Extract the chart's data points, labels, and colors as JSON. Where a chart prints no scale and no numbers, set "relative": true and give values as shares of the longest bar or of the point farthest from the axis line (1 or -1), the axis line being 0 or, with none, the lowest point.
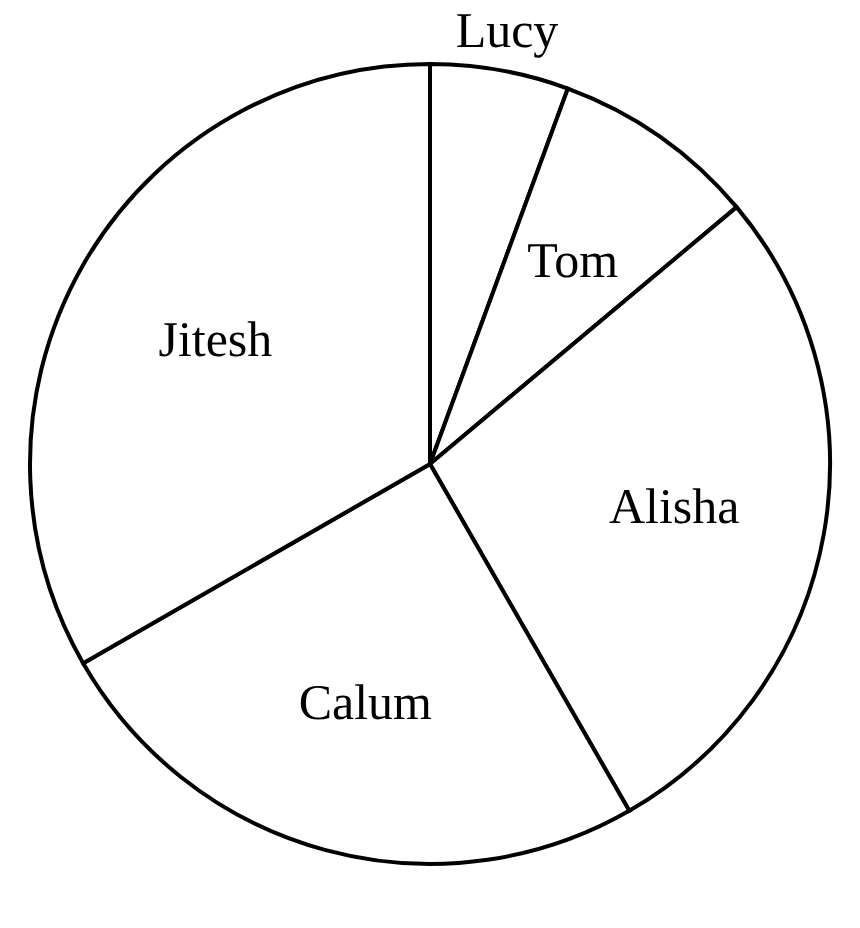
{
  "chart_data": {
    "type": "pie",
    "relative": true,
    "categories": [
      "Lucy",
      "Tom",
      "Alisha",
      "Calum",
      "Jitesh"
    ],
    "values": [
      5.6,
      8.3,
      27.8,
      25,
      33.3
    ],
    "colors": [
      "#ffffff",
      "#ffffff",
      "#ffffff",
      "#ffffff",
      "#ffffff"
    ]
  }
}
